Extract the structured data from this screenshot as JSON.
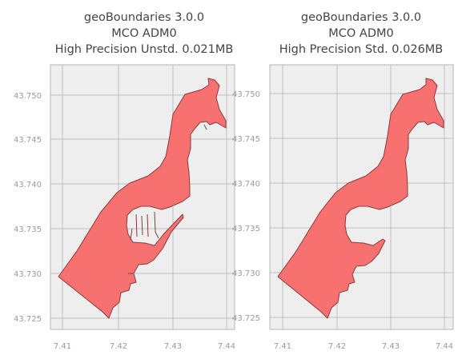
{
  "maps": [
    {
      "title_lines": [
        "geoBoundaries 3.0.0",
        "MCO ADM0",
        "High Precision Unstd. 0.021MB"
      ],
      "fill_color": "#f87171",
      "edge_color": "#8b3a3a",
      "y_ticks": [
        "43.750",
        "43.745",
        "43.740",
        "43.735",
        "43.730",
        "43.725"
      ],
      "x_ticks": [
        "7.41",
        "7.42",
        "7.43",
        "7.44"
      ]
    },
    {
      "title_lines": [
        "geoBoundaries 3.0.0",
        "MCO ADM0",
        "High Precision Std. 0.026MB"
      ],
      "fill_color": "#f87171",
      "edge_color": "#8b3a3a",
      "y_ticks": [
        "43.750",
        "43.745",
        "43.740",
        "43.735",
        "43.730",
        "43.725"
      ],
      "x_ticks": [
        "7.41",
        "7.42",
        "7.43",
        "7.44"
      ]
    }
  ],
  "style": {
    "plot_background": "#eeeeee",
    "grid_color": "#bdbdbd",
    "frame_color": "#b5b5b5",
    "tick_label_color": "#9a9a9a"
  }
}
